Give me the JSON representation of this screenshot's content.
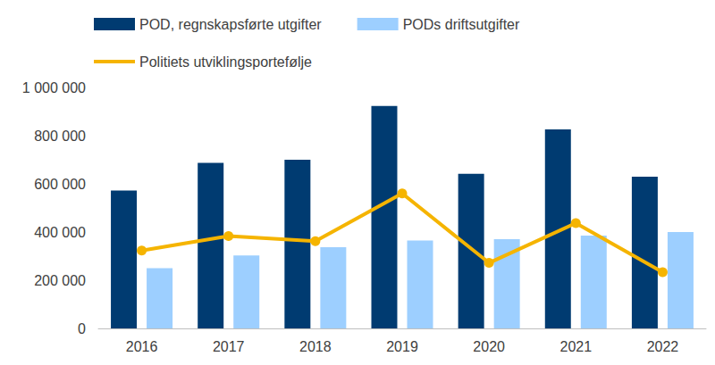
{
  "chart_data": {
    "type": "bar",
    "categories": [
      "2016",
      "2017",
      "2018",
      "2019",
      "2020",
      "2021",
      "2022"
    ],
    "series": [
      {
        "name": "POD, regnskapsførte utgifter",
        "type": "bar",
        "color": "#003b71",
        "values": [
          572000,
          687000,
          700000,
          923000,
          642000,
          826000,
          630000
        ]
      },
      {
        "name": "PODs driftsutgifter",
        "type": "bar",
        "color": "#9dcfff",
        "values": [
          250000,
          303000,
          337000,
          365000,
          370000,
          385000,
          400000
        ]
      },
      {
        "name": "Politiets utviklingsportefølje",
        "type": "line",
        "color": "#f5b400",
        "marker": "circle",
        "values": [
          323000,
          383000,
          362000,
          560000,
          272000,
          437000,
          233000
        ]
      }
    ],
    "ylim": [
      0,
      1000000
    ],
    "yticks": [
      0,
      {
        "value": 200000,
        "label": "200 000"
      },
      {
        "value": 400000,
        "label": "400 000"
      },
      {
        "value": 600000,
        "label": "600 000"
      },
      {
        "value": 800000,
        "label": "800 000"
      },
      {
        "value": 1000000,
        "label": "1 000 000"
      }
    ],
    "grid": false,
    "legend": "top"
  }
}
